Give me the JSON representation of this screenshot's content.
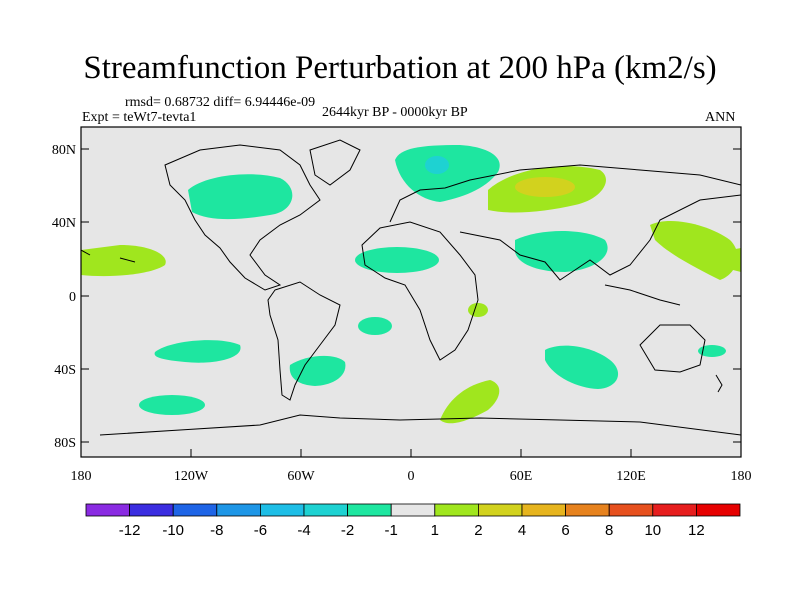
{
  "title": "Streamfunction Perturbation at 200 hPa (km2/s)",
  "stats": "rmsd= 0.68732 diff= 6.94446e-09",
  "experiment": "Expt = teWt7-tevta1",
  "period": "2644kyr BP - 0000kyr BP",
  "season": "ANN",
  "lat_ticks": [
    "80N",
    "40N",
    "0",
    "40S",
    "80S"
  ],
  "lon_ticks": [
    "180",
    "120W",
    "60W",
    "0",
    "60E",
    "120E",
    "180"
  ],
  "colorbar": {
    "labels": [
      "-12",
      "-10",
      "-8",
      "-6",
      "-4",
      "-2",
      "-1",
      "1",
      "2",
      "4",
      "6",
      "8",
      "10",
      "12"
    ],
    "colors": [
      "#8a2be2",
      "#3b2de0",
      "#1e64e6",
      "#1e96e6",
      "#1ebee6",
      "#1ed2d2",
      "#1ee6a0",
      "#e6e6e6",
      "#a0e61e",
      "#d2d21e",
      "#e6b41e",
      "#e6821e",
      "#e6501e",
      "#e61e1e",
      "#e60000"
    ]
  },
  "colors": {
    "background": "#e6e6e6",
    "coast": "#000000"
  }
}
